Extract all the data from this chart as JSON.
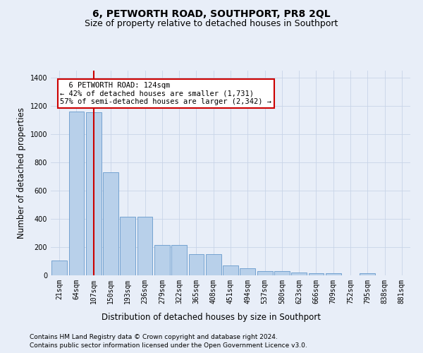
{
  "title": "6, PETWORTH ROAD, SOUTHPORT, PR8 2QL",
  "subtitle": "Size of property relative to detached houses in Southport",
  "xlabel": "Distribution of detached houses by size in Southport",
  "ylabel": "Number of detached properties",
  "footnote1": "Contains HM Land Registry data © Crown copyright and database right 2024.",
  "footnote2": "Contains public sector information licensed under the Open Government Licence v3.0.",
  "categories": [
    "21sqm",
    "64sqm",
    "107sqm",
    "150sqm",
    "193sqm",
    "236sqm",
    "279sqm",
    "322sqm",
    "365sqm",
    "408sqm",
    "451sqm",
    "494sqm",
    "537sqm",
    "580sqm",
    "623sqm",
    "666sqm",
    "709sqm",
    "752sqm",
    "795sqm",
    "838sqm",
    "881sqm"
  ],
  "values": [
    105,
    1160,
    1155,
    730,
    415,
    415,
    215,
    215,
    150,
    150,
    70,
    50,
    30,
    30,
    20,
    15,
    15,
    0,
    15,
    0,
    0
  ],
  "bar_color": "#b8d0ea",
  "bar_edge_color": "#6699cc",
  "highlight_index": 2,
  "highlight_color": "#cc0000",
  "annotation_box_text": "  6 PETWORTH ROAD: 124sqm\n← 42% of detached houses are smaller (1,731)\n57% of semi-detached houses are larger (2,342) →",
  "annotation_box_color": "#cc0000",
  "annotation_box_bg": "#ffffff",
  "ylim": [
    0,
    1450
  ],
  "yticks": [
    0,
    200,
    400,
    600,
    800,
    1000,
    1200,
    1400
  ],
  "grid_color": "#c8d4e8",
  "background_color": "#e8eef8",
  "plot_bg_color": "#e8eef8",
  "title_fontsize": 10,
  "subtitle_fontsize": 9,
  "axis_label_fontsize": 8.5,
  "tick_fontsize": 7,
  "footnote_fontsize": 6.5
}
